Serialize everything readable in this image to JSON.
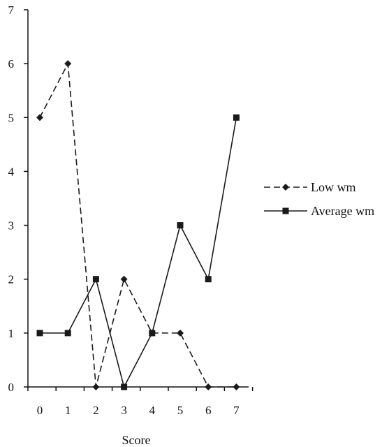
{
  "chart_data": {
    "type": "line",
    "title": "",
    "xlabel": "Score",
    "ylabel": "",
    "x": [
      0,
      1,
      2,
      3,
      4,
      5,
      6,
      7
    ],
    "x_tick_labels": [
      "0",
      "1",
      "2",
      "3",
      "4",
      "5",
      "6",
      "7"
    ],
    "y_tick_labels": [
      "0",
      "1",
      "2",
      "3",
      "4",
      "5",
      "6",
      "7"
    ],
    "ylim": [
      0,
      7
    ],
    "grid": false,
    "legend_position": "right",
    "series": [
      {
        "name": "Low wm",
        "values": [
          5,
          6,
          0,
          2,
          1,
          1,
          0,
          0
        ],
        "marker": "diamond",
        "line_style": "dashed",
        "color": "#1a1a1a"
      },
      {
        "name": "Average wm",
        "values": [
          1,
          1,
          2,
          0,
          1,
          3,
          2,
          5
        ],
        "marker": "square",
        "line_style": "solid",
        "color": "#1a1a1a"
      }
    ]
  }
}
